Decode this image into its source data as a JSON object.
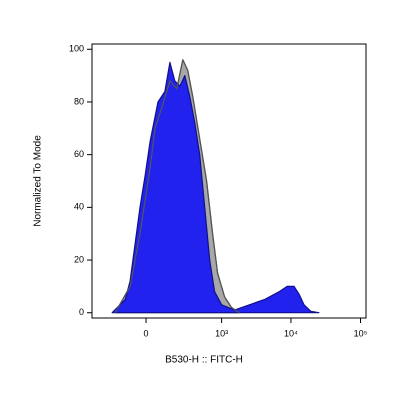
{
  "chart_data": {
    "type": "histogram-overlay",
    "xlabel": "B530-H :: FITC-H",
    "ylabel": "Normalized To Mode",
    "xscale": "asinh",
    "xlim": [
      -480,
      120000
    ],
    "xticks": [
      0,
      {
        "value": 1000,
        "label": "10³"
      },
      {
        "value": 10000,
        "label": "10⁴"
      },
      {
        "value": 100000,
        "label": "10⁵"
      }
    ],
    "ylim": [
      -2,
      102
    ],
    "yticks": [
      0,
      20,
      40,
      60,
      80,
      100
    ],
    "series": [
      {
        "color": "#a8a8a8",
        "outline": "#555555",
        "x": [
          -199,
          -91,
          -33,
          22,
          50,
          91,
          144,
          199,
          254,
          307,
          370,
          474,
          602,
          738,
          873,
          1104,
          1393,
          1812
        ],
        "values": [
          0,
          10,
          30,
          55,
          70,
          78,
          88,
          85,
          96,
          92,
          82,
          66,
          50,
          30,
          15,
          6,
          2,
          0
        ]
      },
      {
        "color": "#2222ee",
        "outline": "#10108a",
        "x": [
          -226,
          -123,
          -91,
          -33,
          -5,
          22,
          67,
          110,
          144,
          182,
          226,
          275,
          332,
          398,
          474,
          563,
          668,
          789,
          1000,
          1538,
          2523,
          4132,
          6773,
          8811,
          11090,
          13080,
          15410,
          19390,
          25200
        ],
        "values": [
          0,
          5,
          12,
          40,
          52,
          65,
          80,
          84,
          95,
          88,
          86,
          90,
          82,
          72,
          60,
          40,
          20,
          8,
          3,
          1,
          3,
          5,
          8,
          10,
          10,
          7,
          3,
          0.5,
          0
        ]
      }
    ]
  }
}
